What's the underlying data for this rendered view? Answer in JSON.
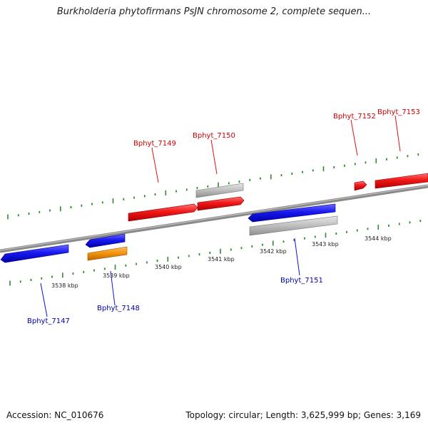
{
  "header": {
    "title": "Burkholderia phytofirmans PsJN chromosome 2, complete sequen..."
  },
  "footer": {
    "accession": "Accession: NC_010676",
    "summary": "Topology: circular; Length: 3,625,999 bp; Genes: 3,169"
  },
  "colors": {
    "forward_strand": "#e01010",
    "reverse_strand": "#1010e0",
    "pseudo_gene": "#bbbbbb",
    "rna_gene": "#f0900a",
    "tick": "#2e8b2e",
    "backbone": "#808080",
    "forward_label": "#cc0000",
    "reverse_label": "#0000aa"
  },
  "scale": {
    "tick_labels": [
      "3538 kbp",
      "3539 kbp",
      "3540 kbp",
      "3541 kbp",
      "3542 kbp",
      "3543 kbp",
      "3544 kbp"
    ]
  },
  "genes": {
    "forward": [
      {
        "label": "Bphyt_7149"
      },
      {
        "label": "Bphyt_7150"
      },
      {
        "label": "Bphyt_7152"
      },
      {
        "label": "Bphyt_7153"
      }
    ],
    "reverse": [
      {
        "label": "Bphyt_7147"
      },
      {
        "label": "Bphyt_7148"
      },
      {
        "label": "Bphyt_7151"
      }
    ]
  }
}
